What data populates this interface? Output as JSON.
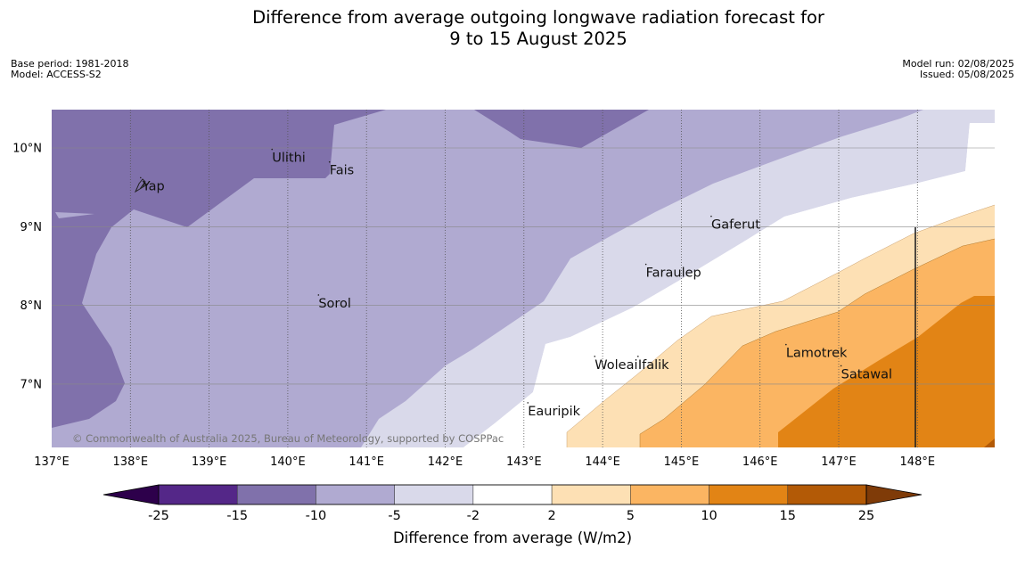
{
  "title": {
    "line1": "Difference from average outgoing longwave radiation forecast for",
    "line2": "9 to 15 August 2025"
  },
  "meta_left": {
    "base_period": "Base period: 1981-2018",
    "model": "Model: ACCESS-S2"
  },
  "meta_right": {
    "model_run": "Model run: 02/08/2025",
    "issued": "Issued: 05/08/2025"
  },
  "map": {
    "lon_range": [
      137,
      149
    ],
    "lat_range": [
      6.2,
      10.5
    ],
    "lon_ticks": [
      "137°E",
      "138°E",
      "139°E",
      "140°E",
      "141°E",
      "142°E",
      "143°E",
      "144°E",
      "145°E",
      "146°E",
      "147°E",
      "148°E"
    ],
    "lat_ticks": [
      "10°N",
      "9°N",
      "8°N",
      "7°N"
    ],
    "places": [
      {
        "name": "Ulithi",
        "lon": 139.8,
        "lat": 9.88
      },
      {
        "name": "Fais",
        "lon": 140.53,
        "lat": 9.72
      },
      {
        "name": "Yap",
        "lon": 138.13,
        "lat": 9.52
      },
      {
        "name": "Gaferut",
        "lon": 145.38,
        "lat": 9.03
      },
      {
        "name": "Faraulep",
        "lon": 144.55,
        "lat": 8.42
      },
      {
        "name": "Sorol",
        "lon": 140.39,
        "lat": 8.03
      },
      {
        "name": "Lamotrek",
        "lon": 146.33,
        "lat": 7.4
      },
      {
        "name": "Woleai",
        "lon": 143.9,
        "lat": 7.25
      },
      {
        "name": "Ifalik",
        "lon": 144.45,
        "lat": 7.25
      },
      {
        "name": "Satawal",
        "lon": 147.03,
        "lat": 7.13
      },
      {
        "name": "Eauripik",
        "lon": 143.05,
        "lat": 6.66
      }
    ],
    "copyright": "© Commonwealth of Australia 2025, Bureau of Meteorology, supported by COSPPac",
    "colors": {
      "-15 to -10": "#8071ab",
      "-10 to -5": "#b0aad1",
      "-5 to -2": "#d9d9ea",
      "-2 to 2": "#ffffff",
      "2 to 5": "#fde0b4",
      "5 to 10": "#fbb562",
      "10 to 15": "#e28415"
    }
  },
  "colorbar": {
    "label": "Difference from average (W/m2)",
    "bounds": [
      "-25",
      "-15",
      "-10",
      "-5",
      "-2",
      "2",
      "5",
      "10",
      "15",
      "25"
    ],
    "colors": [
      "#542788",
      "#8071ab",
      "#b0aad1",
      "#d9d9ea",
      "#ffffff",
      "#fde0b4",
      "#fbb562",
      "#e28415",
      "#b35a06"
    ],
    "under_color": "#2d004b",
    "over_color": "#7f3b08"
  }
}
